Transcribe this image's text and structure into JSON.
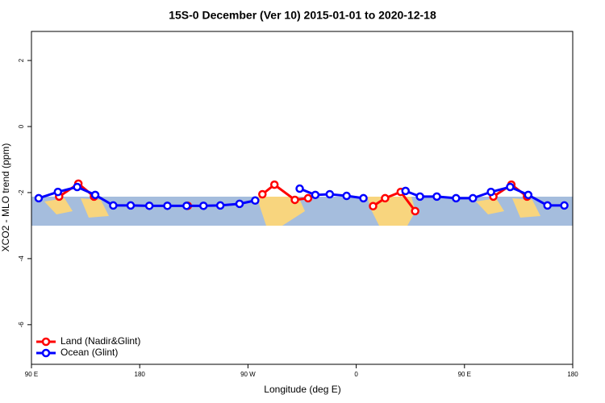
{
  "chart_data": {
    "type": "line",
    "title": "15S-0 December (Ver 10)   2015-01-01 to 2020-12-18",
    "x_label": "Longitude (deg E)",
    "y_label": "XCO2 - MLO trend (ppm)",
    "xlim": [
      90,
      540
    ],
    "ylim": [
      -7.2,
      2.88
    ],
    "xticks": [
      {
        "value": 90,
        "label": "90 E"
      },
      180,
      {
        "value": 270,
        "label": "90 W"
      },
      {
        "value": 360,
        "label": "0"
      },
      {
        "value": 450,
        "label": "90 E"
      },
      {
        "value": 540,
        "label": "180"
      }
    ],
    "yticks": [
      -6,
      -4,
      -2,
      0,
      2
    ],
    "legend": "bottom-left",
    "series": [
      {
        "name": "Land (Nadir&Glint)",
        "color": "#ff0000",
        "x": [
          113,
          129,
          142,
          null,
          220,
          null,
          282,
          292,
          309,
          320,
          null,
          374,
          384,
          397,
          409,
          null,
          474,
          489,
          502
        ],
        "values": [
          -2.12,
          -1.73,
          -2.12,
          null,
          -2.4,
          null,
          -2.05,
          -1.76,
          -2.22,
          -2.17,
          null,
          -2.41,
          -2.17,
          -1.98,
          -2.56,
          null,
          -2.12,
          -1.76,
          -2.12
        ]
      },
      {
        "name": "Ocean (Glint)",
        "color": "#0000ff",
        "x": [
          96,
          112,
          128,
          143,
          158,
          172.5,
          188,
          203,
          219,
          233,
          247,
          263,
          276,
          null,
          313,
          326,
          338,
          352,
          366,
          null,
          401,
          413,
          427,
          443,
          457,
          472,
          488,
          503,
          519,
          533
        ],
        "values": [
          -2.17,
          -1.98,
          -1.83,
          -2.07,
          -2.39,
          -2.39,
          -2.4,
          -2.4,
          -2.4,
          -2.4,
          -2.39,
          -2.34,
          -2.24,
          null,
          -1.88,
          -2.07,
          -2.05,
          -2.1,
          -2.17,
          null,
          -1.95,
          -2.12,
          -2.12,
          -2.17,
          -2.17,
          -1.98,
          -1.83,
          -2.07,
          -2.39,
          -2.39
        ]
      }
    ]
  }
}
